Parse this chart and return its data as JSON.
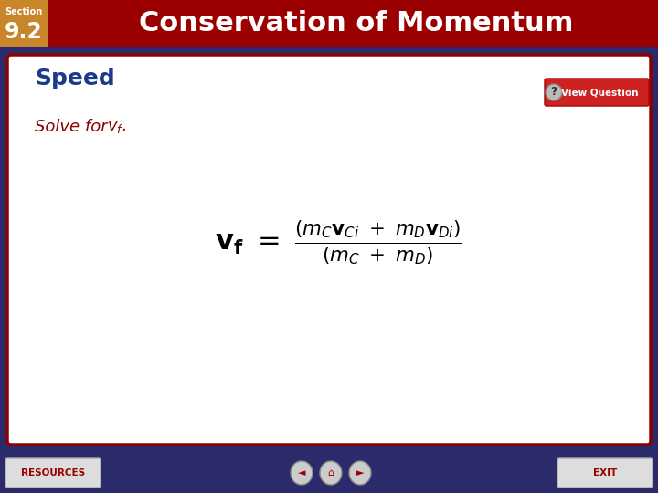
{
  "header_bg_color": "#9B0000",
  "header_text_color": "#FFFFFF",
  "section_label": "Section",
  "section_number": "9.2",
  "section_box_color": "#C8852A",
  "title": "Conservation of Momentum",
  "content_bg_color": "#FFFFFF",
  "content_border_color": "#8B0000",
  "outer_bg_color": "#2B2B6B",
  "speed_label": "Speed",
  "speed_color": "#1C3A8A",
  "solve_text_color": "#8B0000",
  "footer_bg_color": "#2B2B6B",
  "formula_color": "#000000",
  "view_question_bg": "#CC2222",
  "view_question_text": "View Question"
}
